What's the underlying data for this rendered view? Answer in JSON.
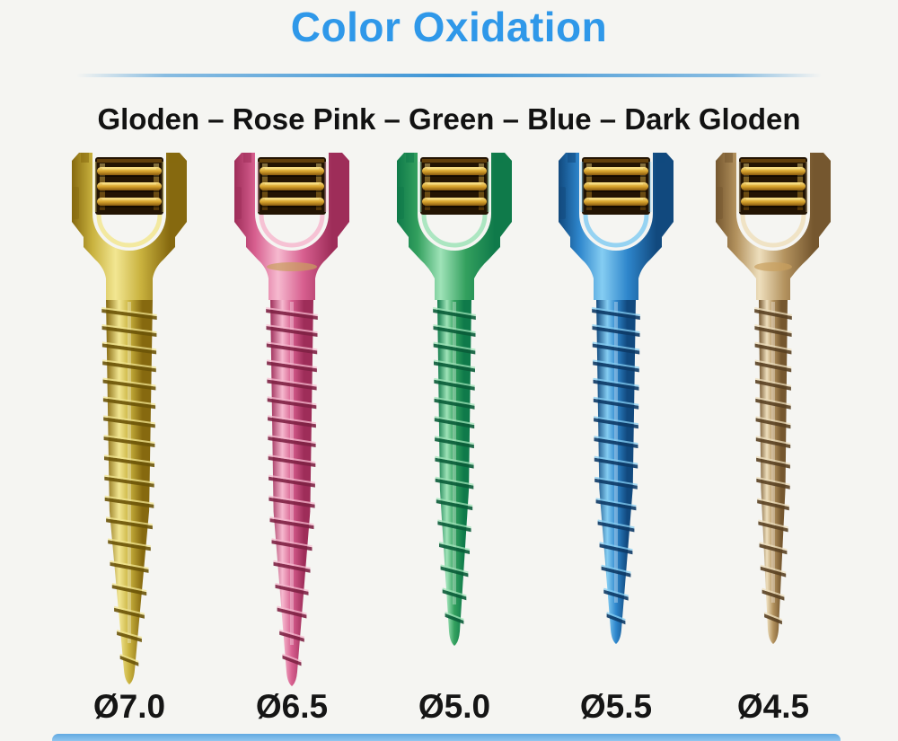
{
  "header": {
    "title": "Color Oxidation",
    "title_color": "#2f98e9",
    "divider_color": "#3f96d6"
  },
  "subtitle": {
    "text": "Gloden – Rose Pink – Green – Blue – Dark Gloden"
  },
  "screws": [
    {
      "name": "Gloden",
      "diameter_label": "Ø7.0",
      "colors": {
        "light": "#f2e692",
        "base": "#c9b23e",
        "dark": "#86690f",
        "crest": "#6b5408"
      },
      "size": {
        "shaft_width": 62,
        "length": 592
      }
    },
    {
      "name": "Rose Pink",
      "diameter_label": "Ø6.5",
      "colors": {
        "light": "#f6b9cf",
        "base": "#d75f8f",
        "dark": "#9e2d59",
        "crest": "#7e2144",
        "edge": "#c9a05e"
      },
      "size": {
        "shaft_width": 58,
        "length": 594
      }
    },
    {
      "name": "Green",
      "diameter_label": "Ø5.0",
      "colors": {
        "light": "#9fe3b8",
        "base": "#33a05e",
        "dark": "#0f7a4a",
        "crest": "#0a5c38"
      },
      "size": {
        "shaft_width": 48,
        "length": 549
      }
    },
    {
      "name": "Blue",
      "diameter_label": "Ø5.5",
      "colors": {
        "light": "#85cdf2",
        "base": "#2e86cc",
        "dark": "#11497e",
        "crest": "#0d3a66"
      },
      "size": {
        "shaft_width": 54,
        "length": 547
      }
    },
    {
      "name": "Dark Gloden",
      "diameter_label": "Ø4.5",
      "colors": {
        "light": "#eedfbd",
        "base": "#b3925e",
        "dark": "#75572f",
        "crest": "#5a4122",
        "edge": "#c9a05e"
      },
      "size": {
        "shaft_width": 42,
        "length": 547
      }
    }
  ],
  "head_details": {
    "interior_background": "#231403",
    "thread_gold_light": "#f8e087",
    "thread_gold": "#d9a52e",
    "thread_gold_dark": "#8a5c10"
  },
  "footer_bar": {
    "color_top": "#61a9e1",
    "color_mid": "#8ec5ee",
    "color_bottom": "#b5d9f4"
  }
}
